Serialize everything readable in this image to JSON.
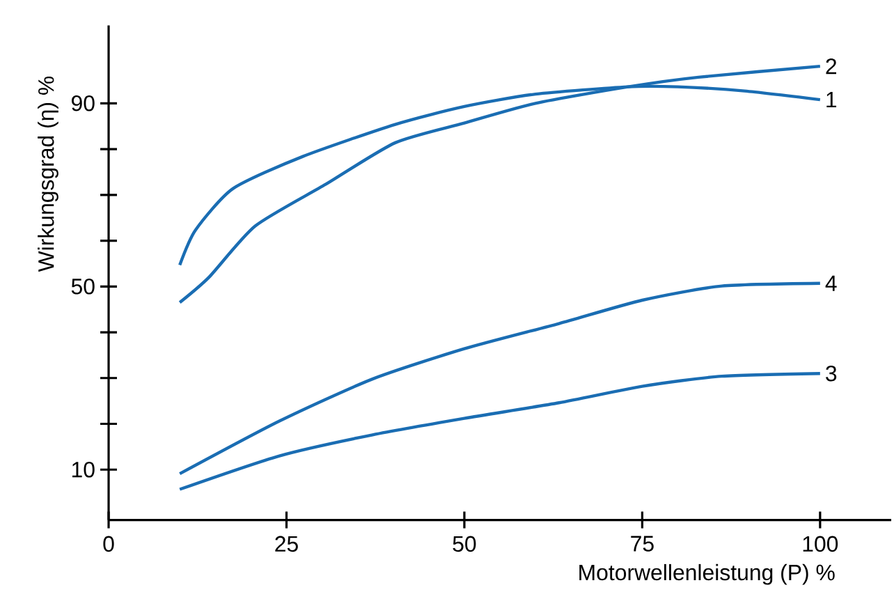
{
  "chart_data": {
    "type": "line",
    "xlabel": "Motorwellenleistung (P) %",
    "ylabel": "Wirkungsgrad (η) %",
    "xlim": [
      0,
      110
    ],
    "ylim": [
      -1,
      107
    ],
    "xticks": [
      0,
      25,
      50,
      75,
      100
    ],
    "yticks": [
      10,
      {
        "value": 20,
        "label": null
      },
      {
        "value": 30,
        "label": null
      },
      {
        "value": 40,
        "label": null
      },
      50,
      {
        "value": 60,
        "label": null
      },
      {
        "value": 70,
        "label": null
      },
      {
        "value": 80,
        "label": null
      },
      90
    ],
    "series": [
      {
        "name": "1",
        "color": "#1a6db3",
        "x": [
          10,
          12.2,
          17.5,
          27.3,
          40.3,
          50,
          60,
          73,
          80,
          89.4,
          100
        ],
        "values": [
          54.7,
          62.3,
          71.4,
          78.4,
          85.4,
          89.3,
          92,
          93.6,
          93.6,
          92.7,
          90.8
        ]
      },
      {
        "name": "2",
        "color": "#1a6db3",
        "x": [
          10,
          14.1,
          20.6,
          30.5,
          40.3,
          50,
          60,
          73,
          82.9,
          100
        ],
        "values": [
          46.5,
          52,
          63.2,
          72.3,
          81.4,
          85.7,
          90,
          93.6,
          95.7,
          98.1
        ]
      },
      {
        "name": "3",
        "color": "#1a6db3",
        "x": [
          10,
          24,
          37.1,
          50,
          63.3,
          75,
          86.2,
          100
        ],
        "values": [
          5.7,
          13,
          17.6,
          21.2,
          24.6,
          28.2,
          30.4,
          31
        ]
      },
      {
        "name": "4",
        "color": "#1a6db3",
        "x": [
          10,
          24,
          37.1,
          50,
          63.3,
          75,
          86.2,
          100
        ],
        "values": [
          9.1,
          20.6,
          29.8,
          36.4,
          41.9,
          47,
          50.1,
          50.7
        ]
      }
    ]
  }
}
